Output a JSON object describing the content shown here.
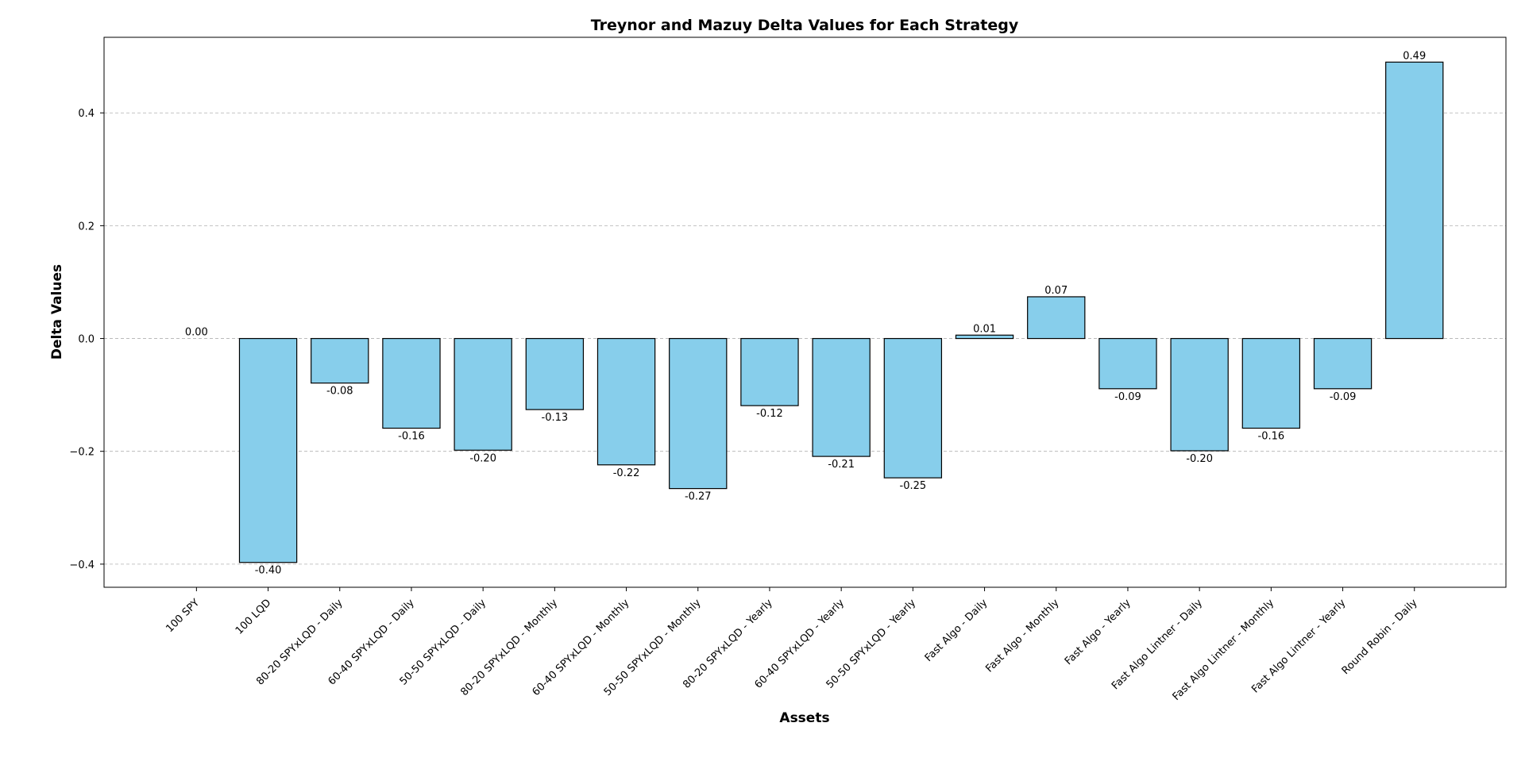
{
  "chart_data": {
    "type": "bar",
    "title": "Treynor and Mazuy Delta Values for Each Strategy",
    "x_label": "Assets",
    "y_label": "Delta Values",
    "categories": [
      "100 SPY",
      "100 LQD",
      "80-20 SPYxLQD - Daily",
      "60-40 SPYxLQD - Daily",
      "50-50 SPYxLQD - Daily",
      "80-20 SPYxLQD - Monthly",
      "60-40 SPYxLQD - Monthly",
      "50-50 SPYxLQD - Monthly",
      "80-20 SPYxLQD - Yearly",
      "60-40 SPYxLQD - Yearly",
      "50-50 SPYxLQD - Yearly",
      "Fast Algo - Daily",
      "Fast Algo - Monthly",
      "Fast Algo - Yearly",
      "Fast Algo Lintner - Daily",
      "Fast Algo Lintner - Monthly",
      "Fast Algo Lintner - Yearly",
      "Round Robin - Daily"
    ],
    "values": [
      0,
      -0.397,
      -0.079,
      -0.159,
      -0.198,
      -0.126,
      -0.224,
      -0.266,
      -0.119,
      -0.209,
      -0.247,
      0.006,
      0.074,
      -0.089,
      -0.199,
      -0.159,
      -0.089,
      0.49
    ],
    "value_labels": [
      "0.00",
      "-0.40",
      "-0.08",
      "-0.16",
      "-0.20",
      "-0.13",
      "-0.22",
      "-0.27",
      "-0.12",
      "-0.21",
      "-0.25",
      "0.01",
      "0.07",
      "-0.09",
      "-0.20",
      "-0.16",
      "-0.09",
      "0.49"
    ],
    "color": "#87ceeb",
    "edge_color": "#000000",
    "ylim": [
      -0.441,
      0.534
    ],
    "yticks": [
      {
        "value": -0.4,
        "label": "−0.4"
      },
      {
        "value": -0.2,
        "label": "−0.2"
      },
      {
        "value": 0,
        "label": "0.0"
      },
      0.2,
      0.4
    ],
    "grid": true
  }
}
